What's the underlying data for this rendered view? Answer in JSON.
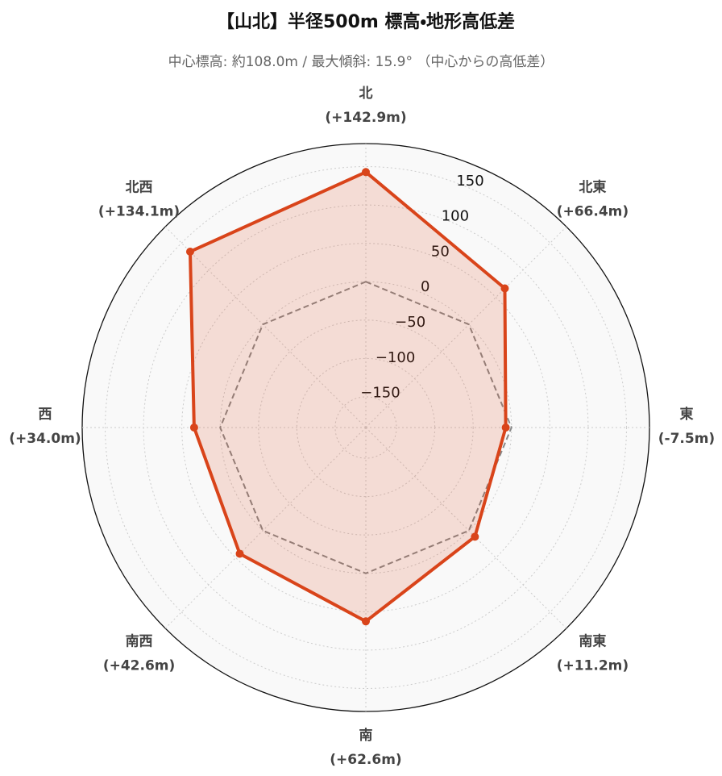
{
  "chart_data": {
    "type": "radar",
    "title": "【山北】半径500m 標高・地形高低差",
    "subtitle": "中心標高: 約108.0m / 最大傾斜: 15.9° （中心からの高低差）",
    "categories": [
      "北",
      "北東",
      "東",
      "南東",
      "南",
      "南西",
      "西",
      "北西"
    ],
    "series": [
      {
        "color": "#d9441a",
        "values": [
          142.9,
          66.4,
          -7.5,
          11.2,
          62.6,
          42.6,
          34.0,
          134.1
        ],
        "value_labels": [
          "(+142.9m)",
          "(+66.4m)",
          "(-7.5m)",
          "(+11.2m)",
          "(+62.6m)",
          "(+42.6m)",
          "(+34.0m)",
          "(+134.1m)"
        ]
      }
    ],
    "ylim": [
      -190,
      180
    ],
    "yticks": [
      {
        "value": -150,
        "label": "−150"
      },
      {
        "value": -100,
        "label": "−100"
      },
      {
        "value": -50,
        "label": "−50"
      },
      0,
      50,
      100,
      150
    ],
    "grid": true
  }
}
